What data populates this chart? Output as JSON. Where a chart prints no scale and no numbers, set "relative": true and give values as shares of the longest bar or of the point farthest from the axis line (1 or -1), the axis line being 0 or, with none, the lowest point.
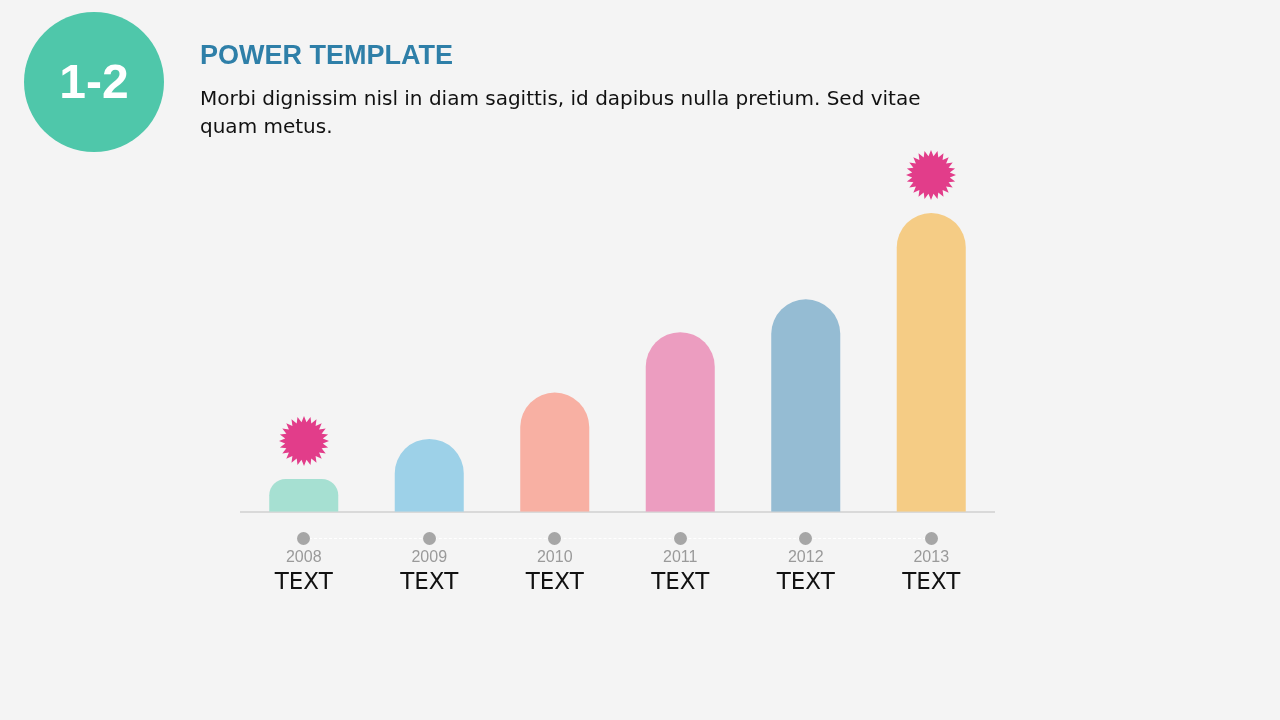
{
  "chart_data": {
    "type": "bar",
    "title": "POWER TEMPLATE",
    "subtitle": "Morbi dignissim nisl in diam sagittis, id dapibus nulla pretium. Sed vitae quam metus.",
    "categories": [
      "2008",
      "2009",
      "2010",
      "2011",
      "2012",
      "2013"
    ],
    "values": [
      0.11,
      0.244,
      0.399,
      0.601,
      0.711,
      1
    ],
    "colors": [
      "#a6e0d2",
      "#9dd1e8",
      "#f8b0a3",
      "#ec9dc0",
      "#95bcd3",
      "#f5cc85"
    ],
    "relative": true,
    "annotations": [
      "1-2",
      "TEXT",
      "TEXT",
      "TEXT",
      "TEXT",
      "TEXT",
      "TEXT"
    ]
  }
}
